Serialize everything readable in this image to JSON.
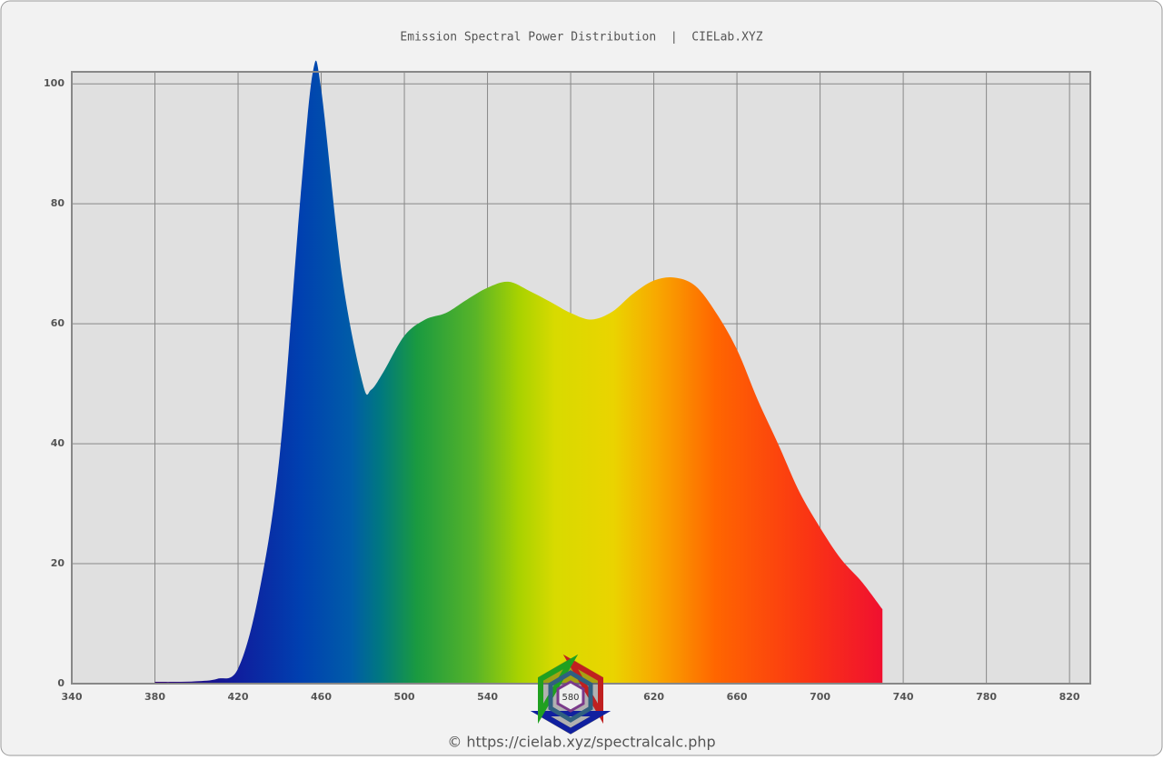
{
  "chart_data": {
    "type": "area",
    "title": "Emission Spectral Power Distribution  |  CIELab.XYZ",
    "footer": "© https://cielab.xyz/spectralcalc.php",
    "logo_text": "580",
    "x": [
      380,
      390,
      400,
      410,
      420,
      430,
      440,
      450,
      456,
      460,
      470,
      480,
      484,
      490,
      500,
      510,
      520,
      530,
      540,
      550,
      560,
      570,
      580,
      590,
      600,
      610,
      620,
      630,
      640,
      650,
      660,
      670,
      680,
      690,
      700,
      710,
      720,
      730
    ],
    "series": [
      {
        "name": "Emission",
        "values": [
          0.3,
          0.3,
          0.4,
          0.8,
          2.5,
          15,
          38,
          81,
          102,
          99,
          68,
          50,
          49,
          52,
          58,
          60.7,
          61.8,
          64,
          66,
          67,
          65.5,
          63.7,
          61.8,
          60.7,
          62,
          65,
          67.2,
          67.7,
          66.3,
          61.8,
          55.7,
          47.3,
          39.8,
          32,
          26,
          20.8,
          17,
          12.4
        ]
      }
    ],
    "xlim": [
      340,
      830
    ],
    "ylim": [
      0,
      102
    ],
    "xticks": [
      340,
      380,
      420,
      460,
      500,
      540,
      580,
      620,
      660,
      700,
      740,
      780,
      820
    ],
    "yticks": [
      0,
      20,
      40,
      60,
      80,
      100
    ],
    "grid": true
  }
}
